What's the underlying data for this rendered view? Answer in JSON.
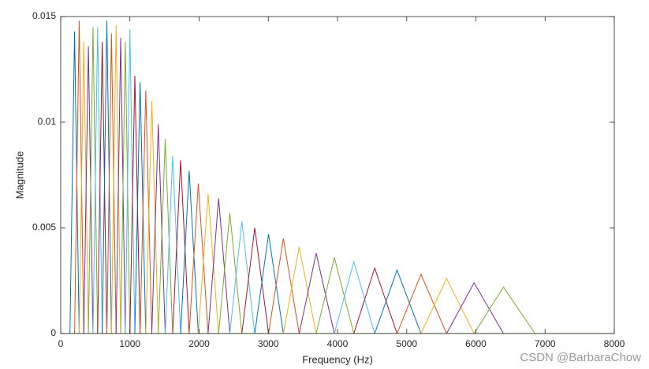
{
  "chart_data": {
    "type": "line",
    "xlabel": "Frequency (Hz)",
    "ylabel": "Magnitude",
    "watermark": "CSDN @BarbaraChow",
    "xlim": [
      0,
      8000
    ],
    "xticks": [
      0,
      1000,
      2000,
      3000,
      4000,
      5000,
      6000,
      7000,
      8000
    ],
    "ylim": [
      0,
      0.015
    ],
    "yticks": [
      0,
      0.005,
      0.01,
      0.015
    ],
    "color_order": [
      "#0072BD",
      "#D95319",
      "#EDB120",
      "#7E2F8E",
      "#77AC30",
      "#4DBEEE",
      "#A2142F"
    ],
    "series": [
      {
        "x": [
          133.33,
          200,
          266.67
        ],
        "values": [
          0,
          0.0143,
          0
        ]
      },
      {
        "x": [
          200,
          266.67,
          333.33
        ],
        "values": [
          0,
          0.0148,
          0
        ]
      },
      {
        "x": [
          266.67,
          333.33,
          400
        ],
        "values": [
          0,
          0.0138,
          0
        ]
      },
      {
        "x": [
          333.33,
          400,
          466.67
        ],
        "values": [
          0,
          0.0136,
          0
        ]
      },
      {
        "x": [
          400,
          466.67,
          533.33
        ],
        "values": [
          0,
          0.0145,
          0
        ]
      },
      {
        "x": [
          466.67,
          533.33,
          600
        ],
        "values": [
          0,
          0.0145,
          0
        ]
      },
      {
        "x": [
          533.33,
          600,
          666.67
        ],
        "values": [
          0,
          0.0138,
          0
        ]
      },
      {
        "x": [
          600,
          666.67,
          733.33
        ],
        "values": [
          0,
          0.0148,
          0
        ]
      },
      {
        "x": [
          666.67,
          733.33,
          800
        ],
        "values": [
          0,
          0.0142,
          0
        ]
      },
      {
        "x": [
          733.33,
          800,
          866.67
        ],
        "values": [
          0,
          0.0146,
          0
        ]
      },
      {
        "x": [
          800,
          866.67,
          933.33
        ],
        "values": [
          0,
          0.014,
          0
        ]
      },
      {
        "x": [
          866.67,
          933.33,
          999.76
        ],
        "values": [
          0,
          0.0138,
          0
        ]
      },
      {
        "x": [
          933.33,
          999.76,
          1070.91
        ],
        "values": [
          0,
          0.0144,
          0
        ]
      },
      {
        "x": [
          999.76,
          1070.91,
          1147.13
        ],
        "values": [
          0,
          0.0122,
          0
        ]
      },
      {
        "x": [
          1070.91,
          1147.13,
          1228.77
        ],
        "values": [
          0,
          0.0119,
          0
        ]
      },
      {
        "x": [
          1147.13,
          1228.77,
          1316.22
        ],
        "values": [
          0,
          0.0115,
          0
        ]
      },
      {
        "x": [
          1228.77,
          1316.22,
          1409.9
        ],
        "values": [
          0,
          0.011,
          0
        ]
      },
      {
        "x": [
          1316.22,
          1409.9,
          1510.24
        ],
        "values": [
          0,
          0.0099,
          0
        ]
      },
      {
        "x": [
          1409.9,
          1510.24,
          1617.73
        ],
        "values": [
          0,
          0.0092,
          0
        ]
      },
      {
        "x": [
          1510.24,
          1617.73,
          1732.87
        ],
        "values": [
          0,
          0.0084,
          0
        ]
      },
      {
        "x": [
          1617.73,
          1732.87,
          1856.2
        ],
        "values": [
          0,
          0.0082,
          0
        ]
      },
      {
        "x": [
          1732.87,
          1856.2,
          1988.31
        ],
        "values": [
          0,
          0.0077,
          0
        ]
      },
      {
        "x": [
          1856.2,
          1988.31,
          2129.82
        ],
        "values": [
          0,
          0.0071,
          0
        ]
      },
      {
        "x": [
          1988.31,
          2129.82,
          2281.4
        ],
        "values": [
          0,
          0.0066,
          0
        ]
      },
      {
        "x": [
          2129.82,
          2281.4,
          2443.77
        ],
        "values": [
          0,
          0.0064,
          0
        ]
      },
      {
        "x": [
          2281.4,
          2443.77,
          2617.7
        ],
        "values": [
          0,
          0.0057,
          0
        ]
      },
      {
        "x": [
          2443.77,
          2617.7,
          2804
        ],
        "values": [
          0,
          0.0053,
          0
        ]
      },
      {
        "x": [
          2617.7,
          2804,
          3003.56
        ],
        "values": [
          0,
          0.005,
          0
        ]
      },
      {
        "x": [
          2804,
          3003.56,
          3217.32
        ],
        "values": [
          0,
          0.0047,
          0
        ]
      },
      {
        "x": [
          3003.56,
          3217.32,
          3446.3
        ],
        "values": [
          0,
          0.0045,
          0
        ]
      },
      {
        "x": [
          3217.32,
          3446.3,
          3691.58
        ],
        "values": [
          0,
          0.0041,
          0
        ]
      },
      {
        "x": [
          3446.3,
          3691.58,
          3954.32
        ],
        "values": [
          0,
          0.0038,
          0
        ]
      },
      {
        "x": [
          3691.58,
          3954.32,
          4235.75
        ],
        "values": [
          0,
          0.0036,
          0
        ]
      },
      {
        "x": [
          3954.32,
          4235.75,
          4537.21
        ],
        "values": [
          0,
          0.0034,
          0
        ]
      },
      {
        "x": [
          4235.75,
          4537.21,
          4860.13
        ],
        "values": [
          0,
          0.0031,
          0
        ]
      },
      {
        "x": [
          4537.21,
          4860.13,
          5206.03
        ],
        "values": [
          0,
          0.003,
          0
        ]
      },
      {
        "x": [
          4860.13,
          5206.03,
          5576.55
        ],
        "values": [
          0,
          0.0028,
          0
        ]
      },
      {
        "x": [
          5206.03,
          5576.55,
          5973.43
        ],
        "values": [
          0,
          0.0026,
          0
        ]
      },
      {
        "x": [
          5576.55,
          5973.43,
          6398.55
        ],
        "values": [
          0,
          0.0024,
          0
        ]
      },
      {
        "x": [
          5973.43,
          6398.55,
          6853.93
        ],
        "values": [
          0,
          0.0022,
          0
        ]
      }
    ]
  }
}
